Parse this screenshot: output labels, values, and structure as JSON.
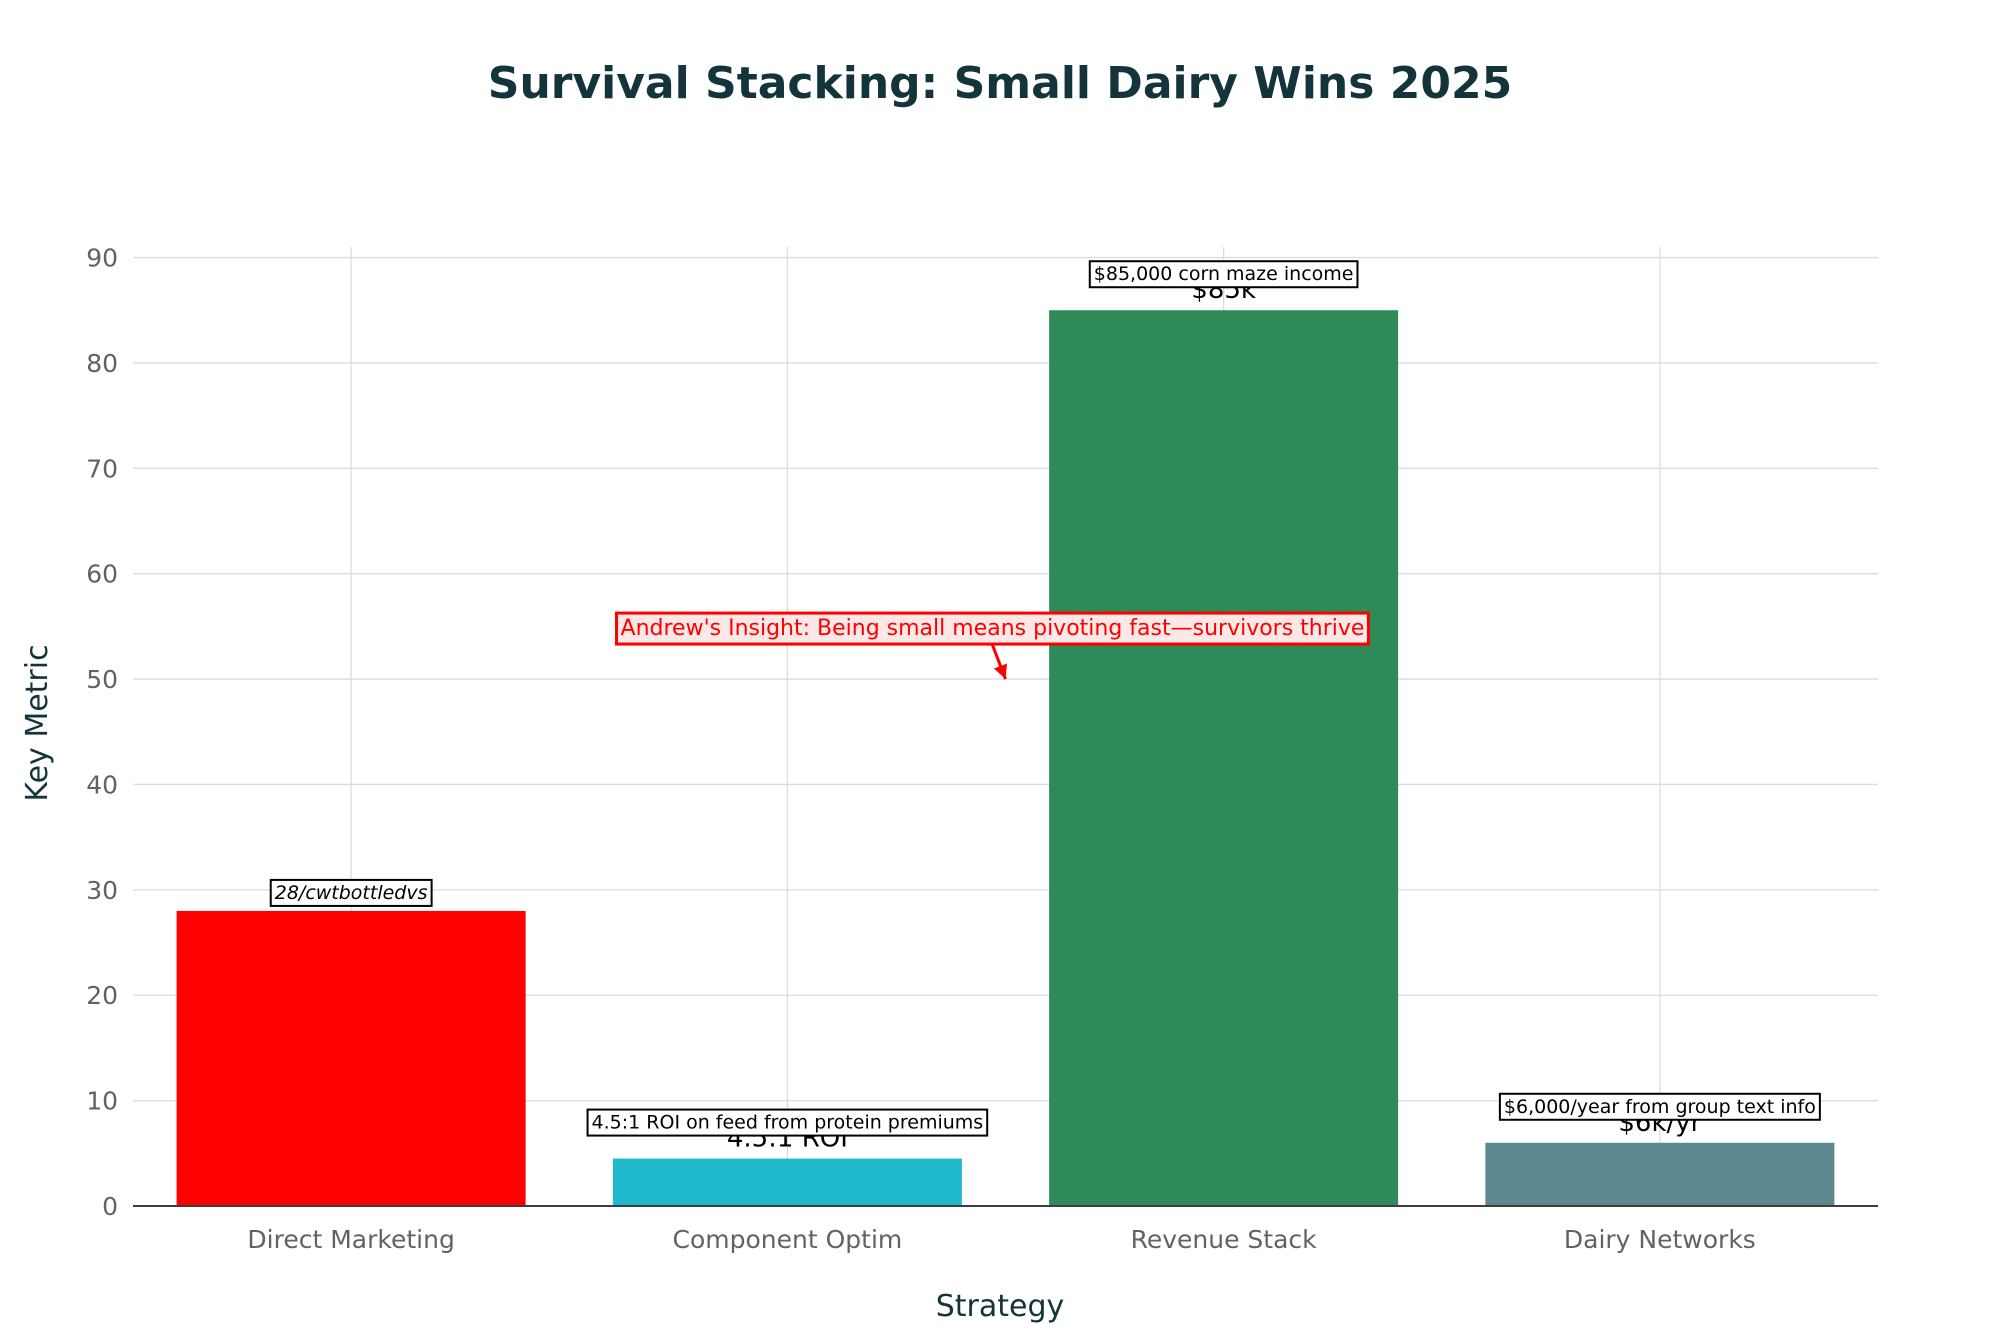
{
  "chart_data": {
    "type": "bar",
    "title": "Survival Stacking: Small Dairy Wins 2025",
    "xlabel": "Strategy",
    "ylabel": "Key Metric",
    "ylim": [
      0,
      91
    ],
    "yticks": [
      0,
      10,
      20,
      30,
      40,
      50,
      60,
      70,
      80,
      90
    ],
    "grid": true,
    "categories": [
      "Direct Marketing",
      "Component Optim",
      "Revenue Stack",
      "Dairy Networks"
    ],
    "values": [
      28,
      4.5,
      85,
      6
    ],
    "colors": [
      "#ff0000",
      "#1fb8cd",
      "#2e8b57",
      "#5d878f"
    ],
    "value_labels": [
      "$28/cwt bottled vs",
      "4.5:1 ROI",
      "$85k",
      "$6k/yr"
    ],
    "annotations": [
      "28/cwtbottledvs",
      "4.5:1 ROI on feed from protein premiums",
      "$85,000 corn maze income",
      "$6,000/year from group text info"
    ],
    "insight": {
      "text": "Andrew's Insight: Being small means pivoting fast—survivors thrive",
      "x": 1.5,
      "y": 50
    }
  }
}
